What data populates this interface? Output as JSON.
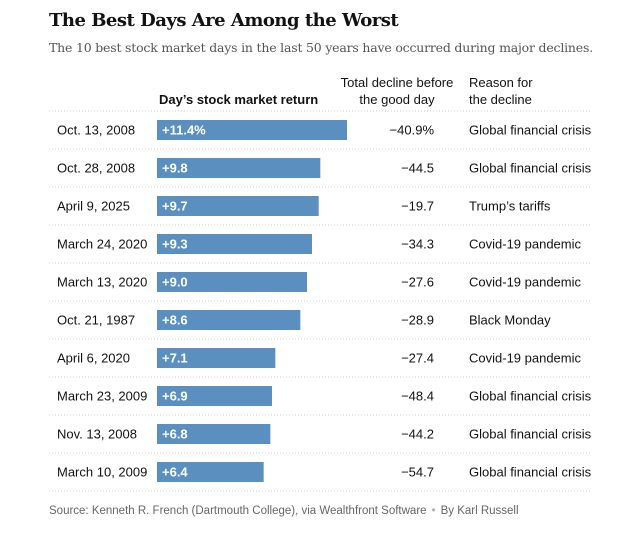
{
  "header": {
    "title": "The Best Days Are Among the Worst",
    "subtitle": "The 10 best stock market days in the last 50 years have occurred during major declines."
  },
  "columns": {
    "return_label": "Day’s stock market return",
    "decline_line1": "Total decline before",
    "decline_line2": "the good day",
    "reason_line1": "Reason for",
    "reason_line2": "the decline"
  },
  "chart_data": {
    "type": "bar",
    "orientation": "horizontal",
    "bar_color": "#5b8fbf",
    "categories": [
      "Oct. 13, 2008",
      "Oct. 28, 2008",
      "April 9, 2025",
      "March 24, 2020",
      "March 13, 2020",
      "Oct. 21, 1987",
      "April 6, 2020",
      "March 23, 2009",
      "Nov. 13, 2008",
      "March 10, 2009"
    ],
    "values": [
      11.4,
      9.8,
      9.7,
      9.3,
      9.0,
      8.6,
      7.1,
      6.9,
      6.8,
      6.4
    ],
    "value_labels": [
      "+11.4%",
      "+9.8",
      "+9.7",
      "+9.3",
      "+9.0",
      "+8.6",
      "+7.1",
      "+6.9",
      "+6.8",
      "+6.4"
    ],
    "total_decline": [
      "−40.9%",
      "−44.5",
      "−19.7",
      "−34.3",
      "−27.6",
      "−28.9",
      "−27.4",
      "−48.4",
      "−44.2",
      "−54.7"
    ],
    "reasons": [
      "Global financial crisis",
      "Global financial crisis",
      "Trump’s tariffs",
      "Covid-19 pandemic",
      "Covid-19 pandemic",
      "Black Monday",
      "Covid-19 pandemic",
      "Global financial crisis",
      "Global financial crisis",
      "Global financial crisis"
    ],
    "xlim": [
      0,
      11.4
    ],
    "grid": false
  },
  "footer": {
    "source": "Source: Kenneth R. French (Dartmouth College), via Wealthfront Software",
    "separator": "•",
    "credit": "By Karl Russell"
  }
}
